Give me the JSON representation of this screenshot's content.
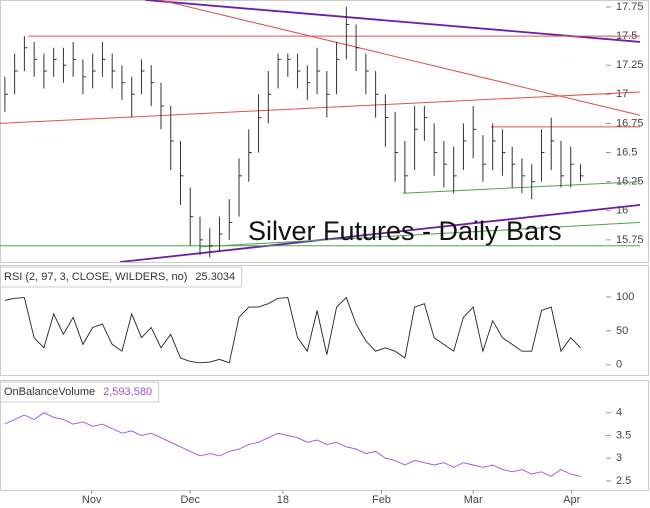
{
  "chart_data": [
    {
      "type": "ohlc",
      "annotation": "Silver Futures - Daily Bars",
      "color": "#333333",
      "x": [
        0,
        1,
        2,
        3,
        4,
        5,
        6,
        7,
        8,
        9,
        10,
        11,
        12,
        13,
        14,
        15,
        16,
        17,
        18,
        19,
        20,
        21,
        22,
        23,
        24,
        25,
        26,
        27,
        28,
        29,
        30,
        31,
        32,
        33,
        34,
        35,
        36,
        37,
        38,
        39,
        40,
        41,
        42,
        43,
        44,
        45,
        46,
        47,
        48,
        49,
        50,
        51,
        52,
        53,
        54,
        55,
        56,
        57,
        58,
        59
      ],
      "high": [
        17.15,
        17.35,
        17.5,
        17.45,
        17.35,
        17.4,
        17.4,
        17.45,
        17.3,
        17.35,
        17.45,
        17.35,
        17.25,
        17.15,
        17.3,
        17.25,
        17.1,
        16.9,
        16.6,
        16.2,
        15.95,
        15.85,
        15.95,
        16.1,
        16.45,
        16.7,
        17.0,
        17.2,
        17.35,
        17.35,
        17.35,
        17.25,
        17.4,
        17.2,
        17.45,
        17.75,
        17.6,
        17.35,
        17.2,
        17.0,
        16.85,
        16.6,
        16.9,
        16.9,
        16.75,
        16.6,
        16.55,
        16.75,
        16.9,
        16.65,
        16.75,
        16.7,
        16.55,
        16.45,
        16.4,
        16.7,
        16.8,
        16.6,
        16.55,
        16.4
      ],
      "low": [
        16.85,
        17.0,
        17.2,
        17.15,
        17.05,
        17.15,
        17.1,
        17.15,
        17.0,
        17.05,
        17.15,
        17.05,
        16.95,
        16.8,
        17.0,
        16.9,
        16.7,
        16.35,
        16.05,
        15.7,
        15.62,
        15.6,
        15.65,
        15.75,
        15.95,
        16.25,
        16.5,
        16.75,
        17.05,
        17.15,
        17.05,
        16.95,
        17.0,
        16.8,
        17.0,
        17.3,
        17.2,
        17.0,
        16.8,
        16.55,
        16.25,
        16.15,
        16.35,
        16.6,
        16.3,
        16.2,
        16.15,
        16.35,
        16.45,
        16.25,
        16.35,
        16.3,
        16.2,
        16.15,
        16.1,
        16.25,
        16.35,
        16.2,
        16.2,
        16.25
      ],
      "close": [
        17.0,
        17.2,
        17.4,
        17.3,
        17.2,
        17.3,
        17.25,
        17.3,
        17.15,
        17.2,
        17.3,
        17.2,
        17.1,
        17.0,
        17.2,
        17.1,
        16.9,
        16.6,
        16.3,
        15.95,
        15.75,
        15.7,
        15.8,
        15.9,
        16.3,
        16.5,
        16.8,
        17.0,
        17.3,
        17.3,
        17.2,
        17.1,
        17.2,
        17.0,
        17.3,
        17.6,
        17.4,
        17.2,
        17.0,
        16.8,
        16.5,
        16.3,
        16.7,
        16.8,
        16.5,
        16.4,
        16.3,
        16.6,
        16.7,
        16.4,
        16.6,
        16.5,
        16.4,
        16.3,
        16.25,
        16.5,
        16.6,
        16.3,
        16.4,
        16.3
      ],
      "lines": [
        {
          "x1": 14.4,
          "y1": 17.81,
          "x2": 65.1,
          "y2": 17.45,
          "color": "#6a1fa8"
        },
        {
          "x1": 2.4,
          "y1": 17.5,
          "x2": 65.1,
          "y2": 17.5,
          "color": "#e05050"
        },
        {
          "x1": 15.9,
          "y1": 17.81,
          "x2": 65.1,
          "y2": 16.82,
          "color": "#e05050"
        },
        {
          "x1": -0.5,
          "y1": 16.75,
          "x2": 65.1,
          "y2": 17.02,
          "color": "#e05050"
        },
        {
          "x1": 49.8,
          "y1": 16.72,
          "x2": 65.1,
          "y2": 16.72,
          "color": "#e05050"
        },
        {
          "x1": 40.8,
          "y1": 16.15,
          "x2": 65.1,
          "y2": 16.25,
          "color": "#50a050"
        },
        {
          "x1": 11.8,
          "y1": 15.56,
          "x2": 65.1,
          "y2": 16.05,
          "color": "#6a1fa8"
        },
        {
          "x1": -0.5,
          "y1": 15.7,
          "x2": 65.1,
          "y2": 15.7,
          "color": "#50a050"
        },
        {
          "x1": 20.0,
          "y1": 15.69,
          "x2": 65.1,
          "y2": 15.9,
          "color": "#50a050"
        }
      ],
      "xlim": [
        -0.5,
        61
      ],
      "ylim": [
        15.56,
        17.81
      ],
      "yticks": [
        15.75,
        16,
        16.25,
        16.5,
        16.75,
        17,
        17.25,
        17.5,
        17.75
      ]
    },
    {
      "type": "line",
      "title": "RSI (2, 97, 3, CLOSE, WILDERS, no)",
      "last_value_label": "25.3034",
      "color": "#222222",
      "x": [
        0,
        1,
        2,
        3,
        4,
        5,
        6,
        7,
        8,
        9,
        10,
        11,
        12,
        13,
        14,
        15,
        16,
        17,
        18,
        19,
        20,
        21,
        22,
        23,
        24,
        25,
        26,
        27,
        28,
        29,
        30,
        31,
        32,
        33,
        34,
        35,
        36,
        37,
        38,
        39,
        40,
        41,
        42,
        43,
        44,
        45,
        46,
        47,
        48,
        49,
        50,
        51,
        52,
        53,
        54,
        55,
        56,
        57,
        58,
        59
      ],
      "values": [
        95,
        98,
        99,
        40,
        25,
        75,
        45,
        70,
        30,
        55,
        60,
        30,
        20,
        75,
        40,
        55,
        25,
        45,
        10,
        5,
        3,
        4,
        8,
        3,
        70,
        85,
        85,
        90,
        98,
        99,
        40,
        20,
        80,
        15,
        85,
        99,
        60,
        35,
        20,
        25,
        20,
        10,
        85,
        90,
        40,
        30,
        20,
        70,
        85,
        20,
        65,
        40,
        30,
        20,
        20,
        80,
        85,
        20,
        40,
        25
      ],
      "xlim": [
        -0.5,
        61
      ],
      "ylim": [
        -15,
        147
      ],
      "yticks": [
        0,
        50,
        100
      ]
    },
    {
      "type": "line",
      "title": "OnBalanceVolume",
      "last_value_label": "2,593,580",
      "color": "#a050e0",
      "x": [
        0,
        1,
        2,
        3,
        4,
        5,
        6,
        7,
        8,
        9,
        10,
        11,
        12,
        13,
        14,
        15,
        16,
        17,
        18,
        19,
        20,
        21,
        22,
        23,
        24,
        25,
        26,
        27,
        28,
        29,
        30,
        31,
        32,
        33,
        34,
        35,
        36,
        37,
        38,
        39,
        40,
        41,
        42,
        43,
        44,
        45,
        46,
        47,
        48,
        49,
        50,
        51,
        52,
        53,
        54,
        55,
        56,
        57,
        58,
        59
      ],
      "values": [
        3.75,
        3.85,
        3.95,
        3.85,
        4.0,
        3.9,
        3.85,
        3.75,
        3.8,
        3.7,
        3.75,
        3.65,
        3.55,
        3.6,
        3.5,
        3.55,
        3.45,
        3.35,
        3.25,
        3.15,
        3.05,
        3.1,
        3.05,
        3.15,
        3.2,
        3.3,
        3.35,
        3.45,
        3.55,
        3.5,
        3.45,
        3.35,
        3.4,
        3.3,
        3.35,
        3.25,
        3.2,
        3.1,
        3.15,
        3.0,
        2.95,
        2.85,
        2.95,
        2.9,
        2.85,
        2.9,
        2.8,
        2.9,
        2.85,
        2.8,
        2.85,
        2.75,
        2.7,
        2.75,
        2.65,
        2.7,
        2.6,
        2.75,
        2.65,
        2.6
      ],
      "xlim": [
        -0.5,
        61
      ],
      "ylim": [
        2.3,
        4.72
      ],
      "yticks": [
        2.5,
        3,
        3.5,
        4
      ],
      "xticks": [
        {
          "value": 8.9,
          "label": "Nov"
        },
        {
          "value": 19,
          "label": "Dec"
        },
        {
          "value": 28.5,
          "label": "18"
        },
        {
          "value": 38.6,
          "label": "Feb"
        },
        {
          "value": 48,
          "label": "Mar"
        },
        {
          "value": 58.1,
          "label": "Apr"
        }
      ]
    }
  ]
}
